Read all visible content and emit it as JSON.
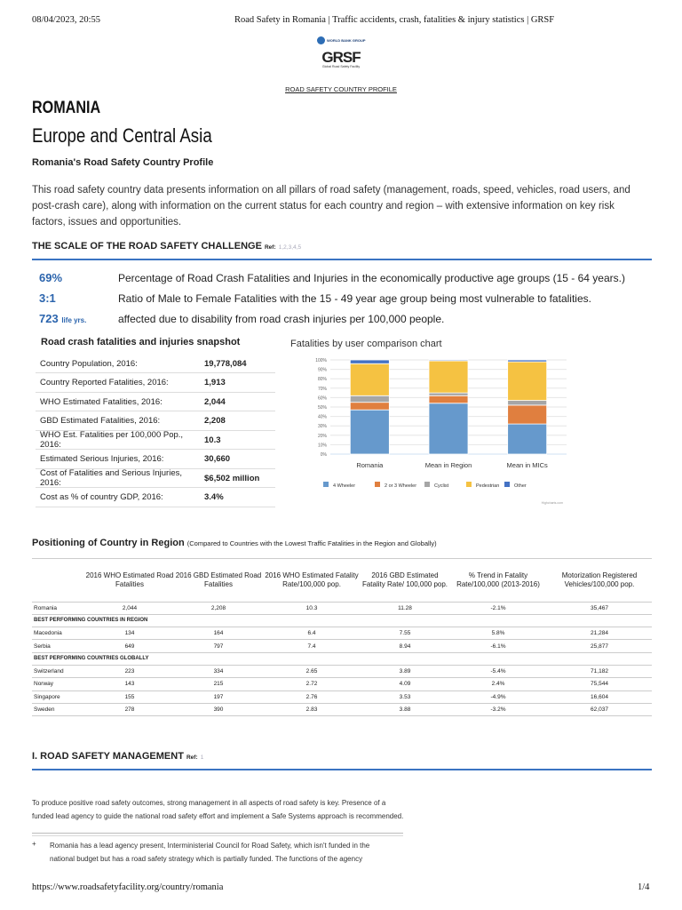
{
  "print_header": {
    "datetime": "08/04/2023, 20:55",
    "title": "Road Safety in Romania | Traffic accidents, crash, fatalities & injury statistics | GRSF"
  },
  "logos": {
    "world_bank": "WORLD BANK GROUP",
    "grsf": "GRSF",
    "grsf_sub": "Global Road Safety Facility"
  },
  "nav_link": "ROAD SAFETY COUNTRY PROFILE",
  "country": "ROMANIA",
  "region": "Europe and Central Asia",
  "profile_title": "Romania's Road Safety Country Profile",
  "intro": "This road safety country data presents information on all pillars of road safety (management, roads, speed, vehicles, road users, and post-crash care), along with information on the current status for each country and region – with extensive information on key risk factors, issues and opportunities.",
  "scale_section": {
    "title": "THE SCALE OF THE ROAD SAFETY CHALLENGE",
    "ref_label": "Ref:",
    "refs": [
      "1",
      "2",
      "3",
      "4",
      "5"
    ],
    "stats": [
      {
        "value": "69%",
        "unit": "",
        "text": "Percentage of Road Crash Fatalities and Injuries in the economically productive age groups (15 - 64 years.)"
      },
      {
        "value": "3:1",
        "unit": "",
        "text": "Ratio of Male to Female Fatalities with the 15 - 49 year age group being most vulnerable to fatalities."
      },
      {
        "value": "723",
        "unit": "life yrs.",
        "text": "affected due to disability from road crash injuries per 100,000 people."
      }
    ]
  },
  "snapshot": {
    "title": "Road crash fatalities and injuries snapshot",
    "rows": [
      {
        "label": "Country Population, 2016:",
        "value": "19,778,084"
      },
      {
        "label": "Country Reported Fatalities, 2016:",
        "value": "1,913"
      },
      {
        "label": "WHO Estimated Fatalities, 2016:",
        "value": "2,044"
      },
      {
        "label": "GBD Estimated Fatalities, 2016:",
        "value": "2,208"
      },
      {
        "label": "WHO Est. Fatalities per 100,000 Pop., 2016:",
        "value": "10.3"
      },
      {
        "label": "Estimated Serious Injuries, 2016:",
        "value": "30,660"
      },
      {
        "label": "Cost of Fatalities and Serious Injuries, 2016:",
        "value": "$6,502 million"
      },
      {
        "label": "Cost as % of country GDP, 2016:",
        "value": "3.4%"
      }
    ]
  },
  "chart_data": {
    "type": "bar",
    "stacked": true,
    "title": "Fatalities by user comparison chart",
    "categories": [
      "Romania",
      "Mean in Region",
      "Mean in MICs"
    ],
    "ylim": [
      0,
      100
    ],
    "yticks": [
      "0%",
      "10%",
      "20%",
      "30%",
      "40%",
      "50%",
      "60%",
      "70%",
      "80%",
      "90%",
      "100%"
    ],
    "grid": true,
    "legend": "bottom",
    "credit": "Highcharts.com",
    "series": [
      {
        "name": "4 Wheeler",
        "color": "#6699cc",
        "values": [
          47,
          54,
          32
        ]
      },
      {
        "name": "2 or 3 Wheeler",
        "color": "#e07f3f",
        "values": [
          8,
          8,
          20
        ]
      },
      {
        "name": "Cyclist",
        "color": "#a6a6a6",
        "values": [
          7,
          3,
          5
        ]
      },
      {
        "name": "Pedestrian",
        "color": "#f5c242",
        "values": [
          34,
          34,
          41
        ]
      },
      {
        "name": "Other",
        "color": "#4472c4",
        "values": [
          4,
          1,
          2
        ]
      }
    ]
  },
  "positioning": {
    "title": "Positioning of Country in Region",
    "subtitle": "(Compared to Countries with the Lowest Traffic Fatalities in the Region and Globally)",
    "headers": [
      "",
      "2016 WHO Estimated Road Fatalities",
      "2016 GBD Estimated Road Fatalities",
      "2016 WHO Estimated Fatality Rate/100,000 pop.",
      "2016 GBD Estimated Fatality Rate/ 100,000 pop.",
      "% Trend in Fatality Rate/100,000 (2013-2016)",
      "Motorization Registered Vehicles/100,000 pop."
    ],
    "rows": [
      {
        "cells": [
          "Romania",
          "2,044",
          "2,208",
          "10.3",
          "11.28",
          "-2.1%",
          "35,467"
        ]
      },
      {
        "section": "BEST PERFORMING COUNTRIES IN REGION"
      },
      {
        "cells": [
          "Macedonia",
          "134",
          "164",
          "6.4",
          "7.55",
          "5.8%",
          "21,284"
        ]
      },
      {
        "cells": [
          "Serbia",
          "649",
          "797",
          "7.4",
          "8.94",
          "-6.1%",
          "25,877"
        ]
      },
      {
        "section": "BEST PERFORMING COUNTRIES GLOBALLY"
      },
      {
        "cells": [
          "Switzerland",
          "223",
          "334",
          "2.65",
          "3.89",
          "-5.4%",
          "71,182"
        ]
      },
      {
        "cells": [
          "Norway",
          "143",
          "215",
          "2.72",
          "4.09",
          "2.4%",
          "75,544"
        ]
      },
      {
        "cells": [
          "Singapore",
          "155",
          "197",
          "2.76",
          "3.53",
          "-4.9%",
          "16,604"
        ]
      },
      {
        "cells": [
          "Sweden",
          "278",
          "390",
          "2.83",
          "3.88",
          "-3.2%",
          "62,037"
        ]
      }
    ]
  },
  "management": {
    "title": "I. ROAD SAFETY MANAGEMENT",
    "ref_label": "Ref:",
    "ref": "1",
    "intro": "To produce positive road safety outcomes, strong management in all aspects of road safety is key. Presence of a funded lead agency to guide the national road safety effort and implement a Safe Systems approach is recommended.",
    "bullet_icon": "+",
    "bullet": "Romania has a lead agency present, Interministerial Council for Road Safety, which isn't funded in the national budget but has a road safety strategy which is partially funded. The functions of the agency"
  },
  "print_footer": {
    "url": "https://www.roadsafetyfacility.org/country/romania",
    "page": "1/4"
  }
}
